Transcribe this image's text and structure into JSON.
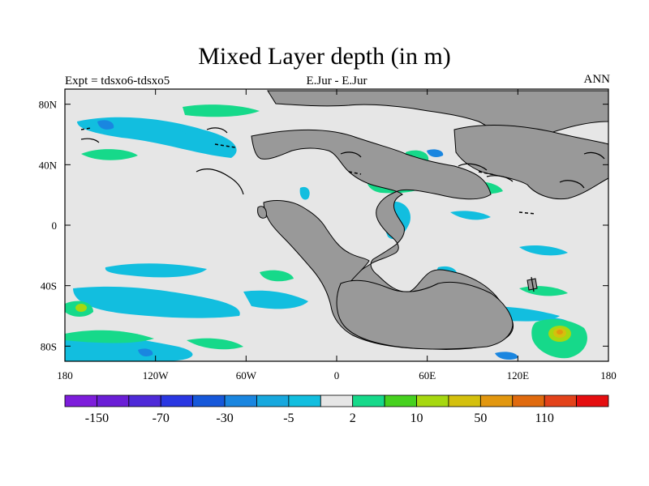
{
  "title": "Mixed Layer depth (in m)",
  "left_label": "Expt = tdsxo6-tdsxo5",
  "center_label": "E.Jur - E.Jur",
  "right_label": "ANN",
  "x_ticks": [
    "180",
    "120W",
    "60W",
    "0",
    "60E",
    "120E",
    "180"
  ],
  "y_ticks": [
    "80N",
    "40N",
    "0",
    "40S",
    "80S"
  ],
  "colorbar": {
    "colors": [
      "#7d1ddb",
      "#6a1ed6",
      "#4e2ad8",
      "#2a37e2",
      "#1658da",
      "#1a86e0",
      "#17a8de",
      "#12bedf",
      "#e6e6e6",
      "#16d98a",
      "#46d11f",
      "#a6d810",
      "#d4c00d",
      "#e2970f",
      "#e06a0e",
      "#e3421a",
      "#e50e10"
    ],
    "labels": [
      "-150",
      "-70",
      "-30",
      "-5",
      "2",
      "10",
      "50",
      "110"
    ]
  },
  "colors": {
    "ocean": "#e6e6e6",
    "land": "#999999",
    "cyan": "#12bedf",
    "green": "#16d98a",
    "blue": "#1a86e0"
  }
}
